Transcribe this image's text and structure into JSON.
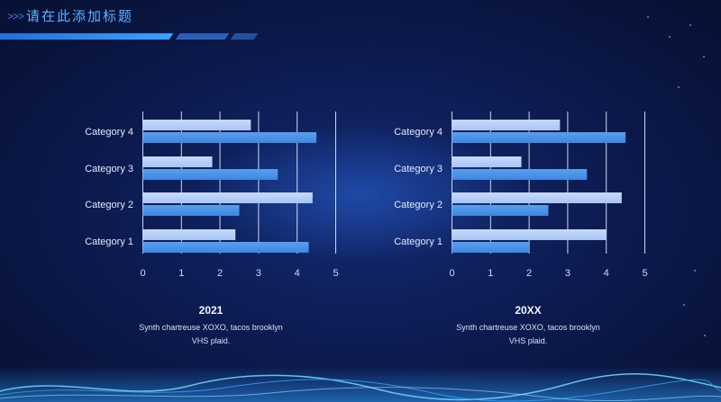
{
  "header": {
    "title": "请在此添加标题",
    "chevrons": ">>>"
  },
  "colors": {
    "bar_light": "#a9c4f4",
    "bar_dark": "#3d86e0",
    "accent": "#2f8ae6",
    "grid": "#e6ecfa"
  },
  "chart_data": [
    {
      "type": "bar",
      "orientation": "horizontal",
      "title": "2021",
      "description": "Synth chartreuse XOXO, tacos brooklyn VHS plaid.",
      "categories": [
        "Category 1",
        "Category 2",
        "Category 3",
        "Category 4"
      ],
      "series": [
        {
          "values": [
            4.3,
            2.5,
            3.5,
            4.5
          ]
        },
        {
          "values": [
            2.4,
            4.4,
            1.8,
            2.8
          ]
        }
      ],
      "xlim": [
        0,
        5
      ],
      "xticks": [
        "0",
        "1",
        "2",
        "3",
        "4",
        "5"
      ],
      "grid": true,
      "legend": "none"
    },
    {
      "type": "bar",
      "orientation": "horizontal",
      "title": "20XX",
      "description": "Synth chartreuse XOXO, tacos brooklyn VHS plaid.",
      "categories": [
        "Category 1",
        "Category 2",
        "Category 3",
        "Category 4"
      ],
      "series": [
        {
          "values": [
            2.0,
            2.5,
            3.5,
            4.5
          ]
        },
        {
          "values": [
            4.0,
            4.4,
            1.8,
            2.8
          ]
        }
      ],
      "xlim": [
        0,
        5
      ],
      "xticks": [
        "0",
        "1",
        "2",
        "3",
        "4",
        "5"
      ],
      "grid": true,
      "legend": "none"
    }
  ]
}
